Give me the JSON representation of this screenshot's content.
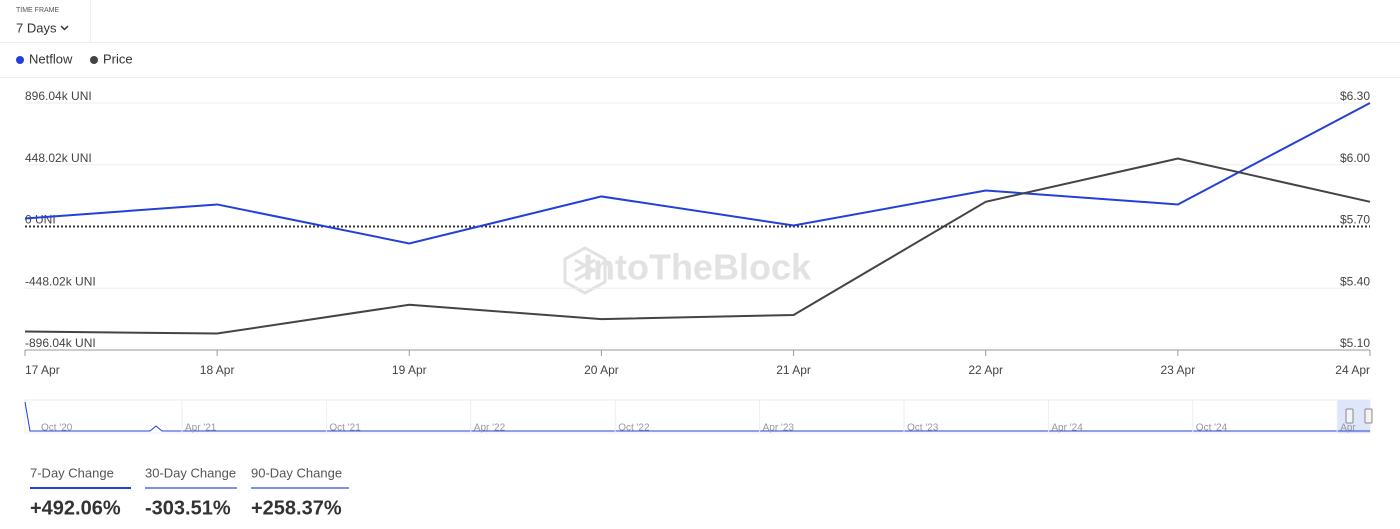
{
  "timeframe": {
    "label": "TIME FRAME",
    "value": "7 Days"
  },
  "chart_data": {
    "type": "line",
    "categories": [
      "17 Apr",
      "18 Apr",
      "19 Apr",
      "20 Apr",
      "21 Apr",
      "22 Apr",
      "23 Apr",
      "24 Apr"
    ],
    "series": [
      {
        "name": "Netflow",
        "color": "#2340d8",
        "axis": "y",
        "values": [
          58000,
          160000,
          -123000,
          218000,
          7000,
          261000,
          160000,
          896000
        ]
      },
      {
        "name": "Price",
        "color": "#444444",
        "axis": "y2",
        "values": [
          5.19,
          5.18,
          5.32,
          5.25,
          5.27,
          5.82,
          6.03,
          5.82
        ]
      }
    ],
    "ylim": [
      -896040,
      896040
    ],
    "yticks": [
      {
        "value": -896040,
        "label": "-896.04k UNI"
      },
      {
        "value": -448020,
        "label": "-448.02k UNI"
      },
      {
        "value": 0,
        "label": "0 UNI"
      },
      {
        "value": 448020,
        "label": "448.02k UNI"
      },
      {
        "value": 896040,
        "label": "896.04k UNI"
      }
    ],
    "y2lim": [
      5.1,
      6.3
    ],
    "y2ticks": [
      {
        "value": 5.1,
        "label": "$5.10"
      },
      {
        "value": 5.4,
        "label": "$5.40"
      },
      {
        "value": 5.7,
        "label": "$5.70"
      },
      {
        "value": 6.0,
        "label": "$6.00"
      },
      {
        "value": 6.3,
        "label": "$6.30"
      }
    ],
    "grid": true,
    "watermark": "IntoTheBlock"
  },
  "navigator": {
    "labels": [
      "Oct '20",
      "Apr '21",
      "Oct '21",
      "Apr '22",
      "Oct '22",
      "Apr '23",
      "Oct '23",
      "Apr '24",
      "Oct '24",
      "Apr"
    ]
  },
  "changes": [
    {
      "label": "7-Day Change",
      "value": "+492.06%"
    },
    {
      "label": "30-Day Change",
      "value": "-303.51%"
    },
    {
      "label": "90-Day Change",
      "value": "+258.37%"
    }
  ]
}
